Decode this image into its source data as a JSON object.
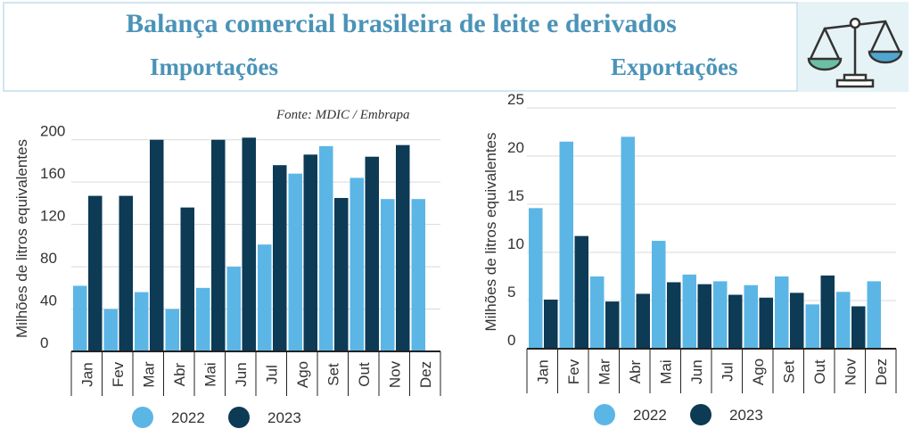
{
  "header": {
    "title": "Balança comercial brasileira de leite e derivados",
    "imports_label": "Importações",
    "exports_label": "Exportações",
    "source": "Fonte: MDIC / Embrapa"
  },
  "colors": {
    "series_2022": "#5bb6e6",
    "series_2023": "#0d3a55"
  },
  "icons": {
    "logo": "balance-scale-icon"
  },
  "chart_data": [
    {
      "type": "bar",
      "title": "Importações",
      "ylabel": "Milhões de litros equivalentes",
      "xlabel": "",
      "ylim": [
        0,
        220
      ],
      "yticks": [
        "0",
        "40",
        "80",
        "120",
        "160",
        "200"
      ],
      "grid": true,
      "legend": "bottom",
      "categories": [
        "Jan",
        "Fev",
        "Mar",
        "Abr",
        "Mai",
        "Jun",
        "Jul",
        "Ago",
        "Set",
        "Out",
        "Nov",
        "Dez"
      ],
      "series": [
        {
          "name": "2022",
          "values": [
            62,
            40,
            56,
            40,
            60,
            80,
            101,
            168,
            194,
            164,
            144,
            144
          ]
        },
        {
          "name": "2023",
          "values": [
            147,
            147,
            200,
            136,
            200,
            202,
            176,
            186,
            145,
            184,
            195,
            null
          ]
        }
      ]
    },
    {
      "type": "bar",
      "title": "Exportações",
      "ylabel": "Milhões de litros equivalentes",
      "xlabel": "",
      "ylim": [
        0,
        25
      ],
      "yticks": [
        "0",
        "5",
        "10",
        "15",
        "20",
        "25"
      ],
      "grid": true,
      "legend": "bottom",
      "categories": [
        "Jan",
        "Fev",
        "Mar",
        "Abr",
        "Mai",
        "Jun",
        "Jul",
        "Ago",
        "Set",
        "Out",
        "Nov",
        "Dez"
      ],
      "series": [
        {
          "name": "2022",
          "values": [
            14.6,
            21.5,
            7.5,
            22.0,
            11.2,
            7.7,
            7.0,
            6.6,
            7.5,
            4.6,
            5.9,
            7.0
          ]
        },
        {
          "name": "2023",
          "values": [
            5.1,
            11.7,
            4.9,
            5.7,
            6.9,
            6.7,
            5.6,
            5.3,
            5.8,
            7.6,
            4.4,
            null
          ]
        }
      ]
    }
  ]
}
